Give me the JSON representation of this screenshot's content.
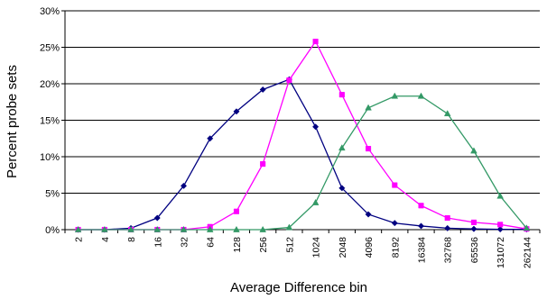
{
  "chart_data": {
    "type": "line",
    "title": "",
    "xlabel": "Average Difference bin",
    "ylabel": "Percent probe sets",
    "ylim": [
      0,
      30
    ],
    "yticks": [
      "0%",
      "5%",
      "10%",
      "15%",
      "20%",
      "25%",
      "30%"
    ],
    "grid": "horizontal",
    "legend": "none",
    "categories": [
      "2",
      "4",
      "8",
      "16",
      "32",
      "64",
      "128",
      "256",
      "512",
      "1024",
      "2048",
      "4096",
      "8192",
      "16384",
      "32768",
      "65536",
      "131072",
      "262144"
    ],
    "series": [
      {
        "color": "#000080",
        "marker": "diamond",
        "values": [
          0,
          0,
          0.2,
          1.6,
          6.0,
          12.5,
          16.2,
          19.2,
          20.6,
          14.1,
          5.7,
          2.1,
          0.9,
          0.5,
          0.2,
          0.1,
          0.05,
          0.05
        ]
      },
      {
        "color": "#ff00ff",
        "marker": "square",
        "values": [
          0,
          0,
          0,
          0,
          0,
          0.4,
          2.5,
          9.0,
          20.5,
          25.8,
          18.5,
          11.1,
          6.1,
          3.3,
          1.6,
          1.0,
          0.7,
          0.1
        ]
      },
      {
        "color": "#339966",
        "marker": "triangle",
        "values": [
          0,
          0,
          0,
          0,
          0,
          0,
          0,
          0,
          0.3,
          3.7,
          11.2,
          16.7,
          18.3,
          18.3,
          15.9,
          10.8,
          4.6,
          0.2
        ]
      }
    ]
  }
}
